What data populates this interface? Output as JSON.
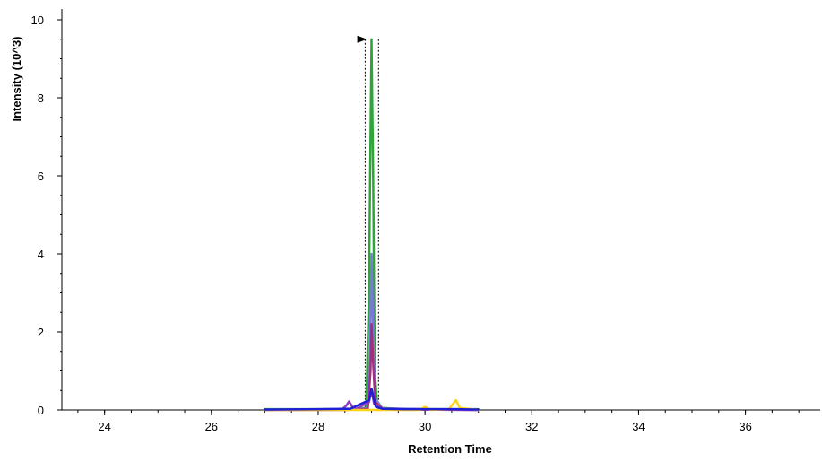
{
  "chart_data": {
    "type": "line",
    "title": "",
    "xlabel": "Retention Time",
    "ylabel": "Intensity (10^3)",
    "xlim": [
      23.2,
      37.4
    ],
    "ylim": [
      0,
      10
    ],
    "x_ticks": [
      24,
      26,
      28,
      30,
      32,
      34,
      36
    ],
    "y_ticks": [
      0,
      2,
      4,
      6,
      8,
      10
    ],
    "grid": false,
    "legend": "none",
    "integration_window": [
      28.88,
      29.13
    ],
    "apex_marker_rt": 28.9,
    "series": [
      {
        "color": "#2ea43a",
        "x": [
          27.0,
          28.5,
          28.9,
          28.95,
          29.0,
          29.03,
          29.06,
          29.1,
          29.2,
          29.5,
          30.0,
          31.0
        ],
        "y": [
          0.02,
          0.02,
          0.05,
          3.0,
          9.5,
          6.0,
          1.0,
          0.2,
          0.05,
          0.03,
          0.02,
          0.02
        ]
      },
      {
        "color": "#7a7ad6",
        "x": [
          27.0,
          28.5,
          28.92,
          28.97,
          29.0,
          29.03,
          29.07,
          29.2,
          30.0,
          31.0
        ],
        "y": [
          0.01,
          0.01,
          0.04,
          1.5,
          4.0,
          2.0,
          0.3,
          0.04,
          0.02,
          0.01
        ]
      },
      {
        "color": "#a0307a",
        "x": [
          27.0,
          28.5,
          28.93,
          28.98,
          29.0,
          29.03,
          29.07,
          29.2,
          30.0,
          31.0
        ],
        "y": [
          0.0,
          0.0,
          0.03,
          1.0,
          2.2,
          1.2,
          0.2,
          0.03,
          0.01,
          0.0
        ]
      },
      {
        "color": "#9040c0",
        "x": [
          27.0,
          28.45,
          28.52,
          28.58,
          28.64,
          28.7,
          28.95,
          29.0,
          29.05,
          29.2,
          31.0
        ],
        "y": [
          0.0,
          0.02,
          0.1,
          0.22,
          0.08,
          0.02,
          0.2,
          0.5,
          0.15,
          0.02,
          0.0
        ]
      },
      {
        "color": "#ffd21a",
        "x": [
          27.0,
          29.9,
          30.0,
          30.1,
          30.45,
          30.52,
          30.58,
          30.65,
          31.0
        ],
        "y": [
          0.0,
          0.0,
          0.08,
          0.0,
          0.02,
          0.15,
          0.25,
          0.05,
          0.0
        ]
      },
      {
        "color": "#1f1fd6",
        "x": [
          27.0,
          28.0,
          28.6,
          28.95,
          29.0,
          29.04,
          29.08,
          29.2,
          29.6,
          30.5,
          31.0
        ],
        "y": [
          0.01,
          0.02,
          0.03,
          0.25,
          0.55,
          0.3,
          0.08,
          0.03,
          0.02,
          0.02,
          0.01
        ]
      }
    ]
  }
}
